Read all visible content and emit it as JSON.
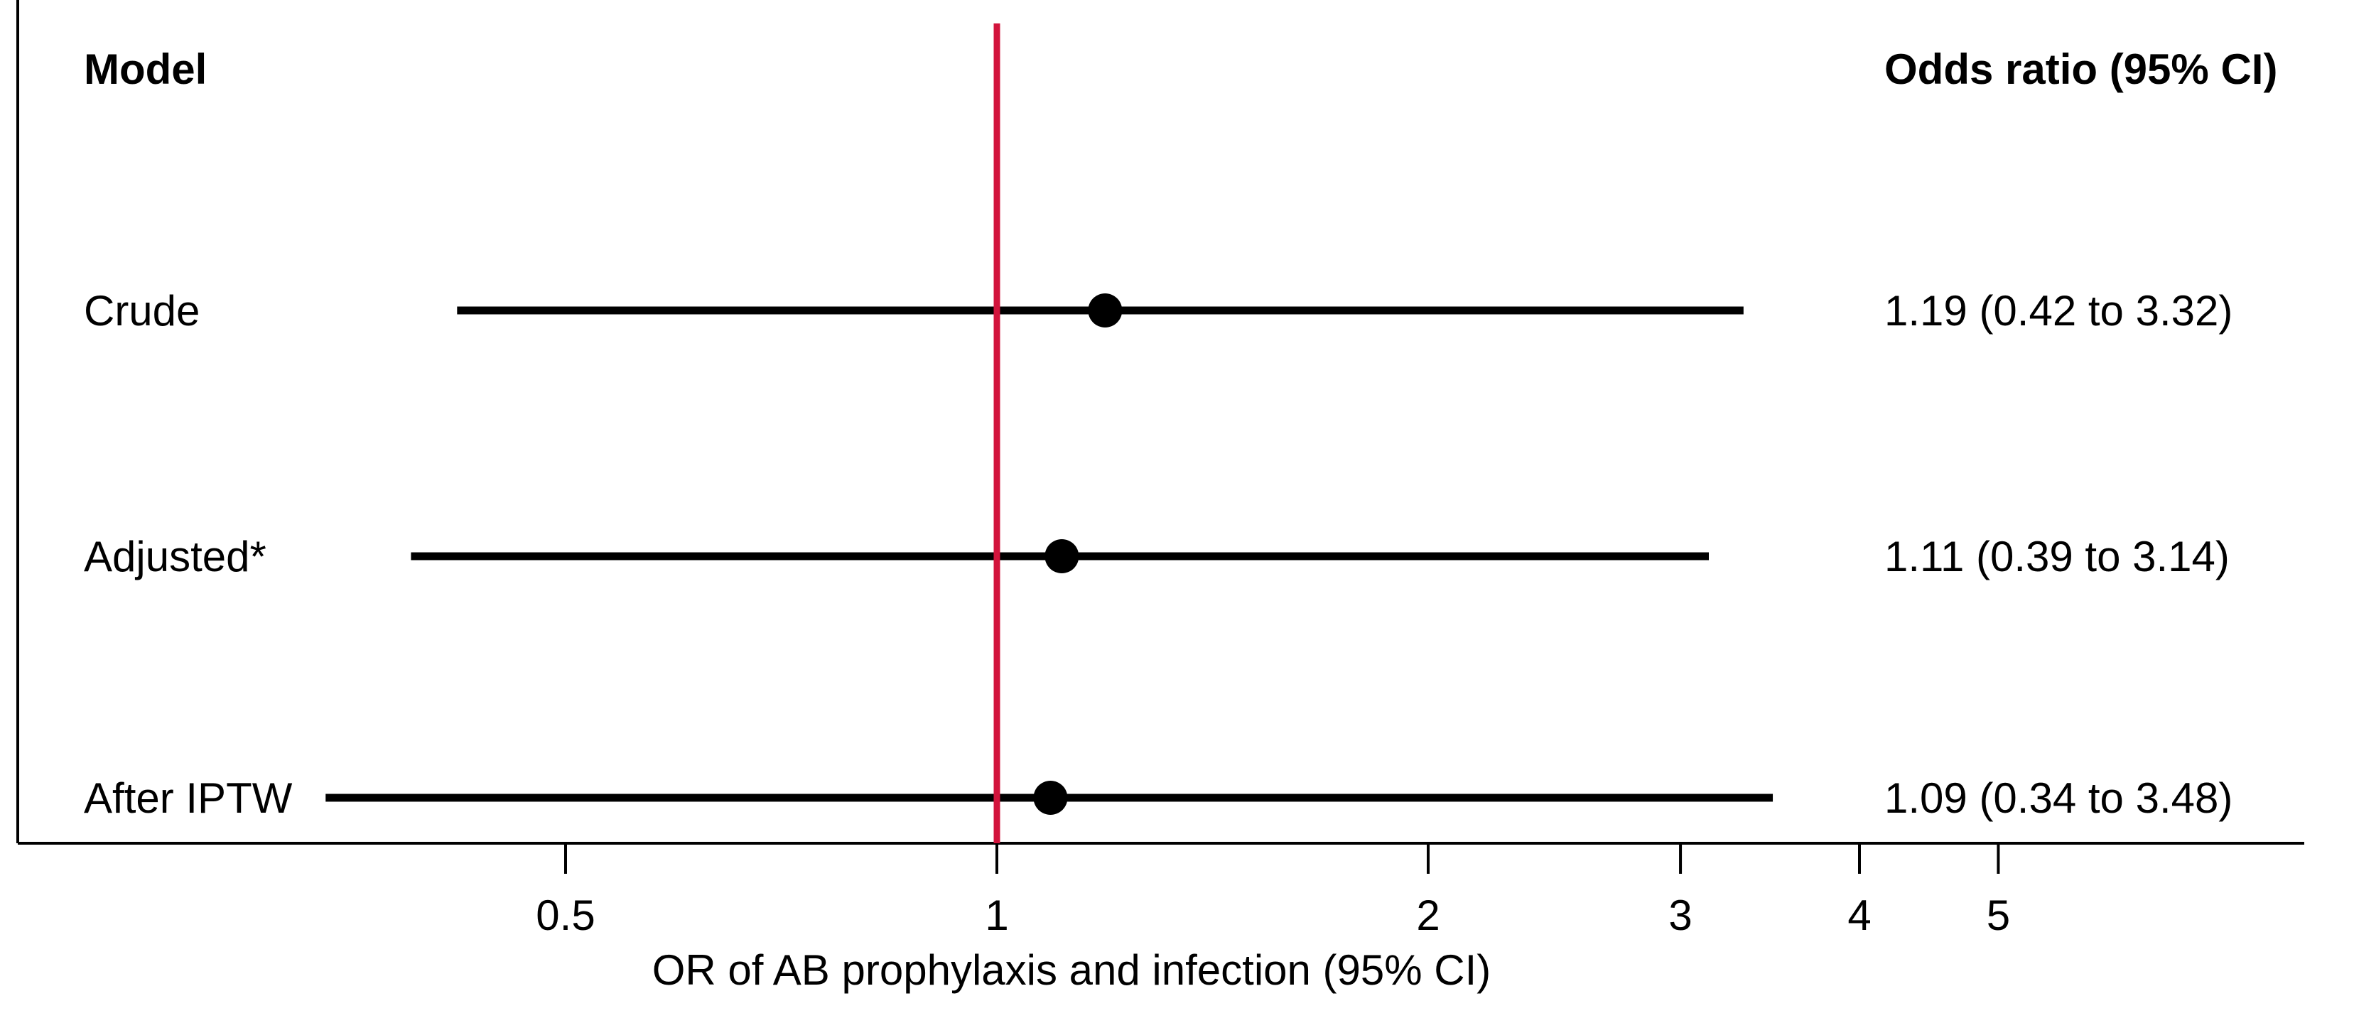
{
  "chart_data": {
    "type": "forest",
    "header": {
      "left": "Model",
      "right": "Odds ratio (95% CI)"
    },
    "xlabel": "OR of AB prophylaxis and infection (95% CI)",
    "x_scale": "log",
    "xlim": [
      0.2,
      7.5
    ],
    "reference_line": 1,
    "reference_color": "#d2143c",
    "point_color": "#000000",
    "ticks": [
      {
        "value": 0.5,
        "label": "0.5"
      },
      {
        "value": 1,
        "label": "1"
      },
      {
        "value": 2,
        "label": "2"
      },
      {
        "value": 3,
        "label": "3"
      },
      {
        "value": 4,
        "label": "4"
      },
      {
        "value": 5,
        "label": "5"
      }
    ],
    "rows": [
      {
        "label": "Crude",
        "or": 1.19,
        "lower": 0.42,
        "upper": 3.32,
        "text": "1.19 (0.42 to 3.32)"
      },
      {
        "label": "Adjusted*",
        "or": 1.11,
        "lower": 0.39,
        "upper": 3.14,
        "text": "1.11 (0.39 to 3.14)"
      },
      {
        "label": "After IPTW",
        "or": 1.09,
        "lower": 0.34,
        "upper": 3.48,
        "text": "1.09 (0.34 to 3.48)"
      }
    ]
  }
}
